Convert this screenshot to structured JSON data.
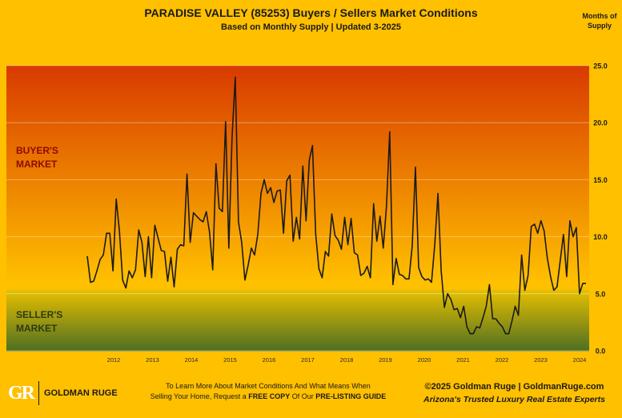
{
  "header": {
    "title": "PARADISE VALLEY (85253) Buyers / Sellers Market Conditions",
    "subtitle": "Based on Monthly Supply | Updated 3-2025",
    "unit_label": "Months of Supply"
  },
  "zones": {
    "buyer": "BUYER'S MARKET",
    "seller": "SELLER'S MARKET"
  },
  "colors": {
    "background": "#FFC000",
    "buyer_zone_top": "#D83A00",
    "buyer_zone_bottom": "#FFC000",
    "seller_zone_top": "#E8C000",
    "seller_zone_bottom": "#4E6F22",
    "line": "#1a1a1a"
  },
  "chart_data": {
    "type": "line",
    "title": "PARADISE VALLEY (85253) Buyers / Sellers Market Conditions",
    "subtitle": "Based on Monthly Supply | Updated 3-2025",
    "ylabel": "Months of Supply",
    "xlabel": "",
    "ylim": [
      0,
      25
    ],
    "yticks": [
      "0.0",
      "5.0",
      "10.0",
      "15.0",
      "20.0",
      "25.0"
    ],
    "xticks": [
      "2012",
      "2013",
      "2014",
      "2015",
      "2016",
      "2017",
      "2018",
      "2019",
      "2020",
      "2021",
      "2022",
      "2023",
      "2024"
    ],
    "grid": true,
    "thresholds": {
      "seller_below": 5,
      "buyer_above": 6
    },
    "series": [
      {
        "start": "2011-07",
        "frequency": "monthly",
        "values": [
          8.3,
          6.0,
          6.1,
          7.0,
          8.0,
          8.4,
          10.3,
          10.3,
          7.0,
          13.3,
          10.5,
          6.2,
          5.5,
          7.0,
          6.4,
          7.1,
          10.6,
          9.5,
          6.5,
          10.0,
          6.4,
          11.0,
          9.9,
          8.8,
          8.7,
          6.1,
          8.2,
          5.6,
          8.9,
          9.3,
          9.2,
          15.5,
          9.5,
          12.1,
          11.8,
          11.5,
          11.3,
          12.2,
          10.4,
          7.1,
          16.4,
          12.5,
          12.2,
          20.1,
          9.0,
          18.7,
          24.0,
          11.3,
          9.5,
          6.2,
          7.5,
          9.0,
          8.4,
          10.2,
          13.8,
          15.0,
          13.8,
          14.3,
          13.0,
          14.0,
          14.1,
          10.3,
          14.9,
          15.4,
          9.6,
          11.7,
          9.8,
          16.2,
          11.4,
          16.7,
          18.0,
          10.2,
          7.2,
          6.4,
          8.7,
          8.3,
          12.0,
          10.1,
          9.7,
          8.9,
          11.7,
          9.3,
          11.6,
          8.6,
          8.4,
          6.6,
          6.8,
          7.4,
          6.4,
          12.9,
          9.6,
          11.8,
          9.0,
          12.7,
          19.2,
          5.8,
          8.1,
          6.7,
          6.6,
          6.3,
          6.3,
          9.2,
          16.1,
          7.3,
          6.5,
          6.2,
          6.3,
          6.0,
          9.3,
          13.8,
          7.0,
          3.8,
          5.0,
          4.5,
          3.6,
          3.7,
          2.9,
          3.9,
          2.1,
          1.5,
          1.5,
          2.1,
          2.0,
          2.9,
          3.9,
          5.8,
          2.8,
          2.8,
          2.4,
          2.1,
          1.5,
          1.5,
          2.6,
          3.9,
          3.1,
          8.4,
          5.3,
          6.6,
          10.9,
          11.1,
          10.3,
          11.4,
          10.5,
          8.1,
          6.5,
          5.3,
          5.6,
          7.9,
          10.2,
          6.5,
          11.4,
          10.0,
          10.8,
          5.0,
          5.9,
          5.9
        ]
      }
    ]
  },
  "footer": {
    "logo_mark": "GR",
    "logo_text": "GOLDMAN RUGE",
    "cta_line1": "To Learn More About Market Conditions And What Means When",
    "cta_line2_a": "Selling Your Home, Request a ",
    "cta_line2_b": "FREE COPY",
    "cta_line2_c": " Of Our ",
    "cta_line2_d": "PRE-LISTING GUIDE",
    "copyright": "©2025 Goldman Ruge  |  GoldmanRuge.com",
    "tagline": "Arizona's Trusted Luxury Real Estate Experts"
  }
}
